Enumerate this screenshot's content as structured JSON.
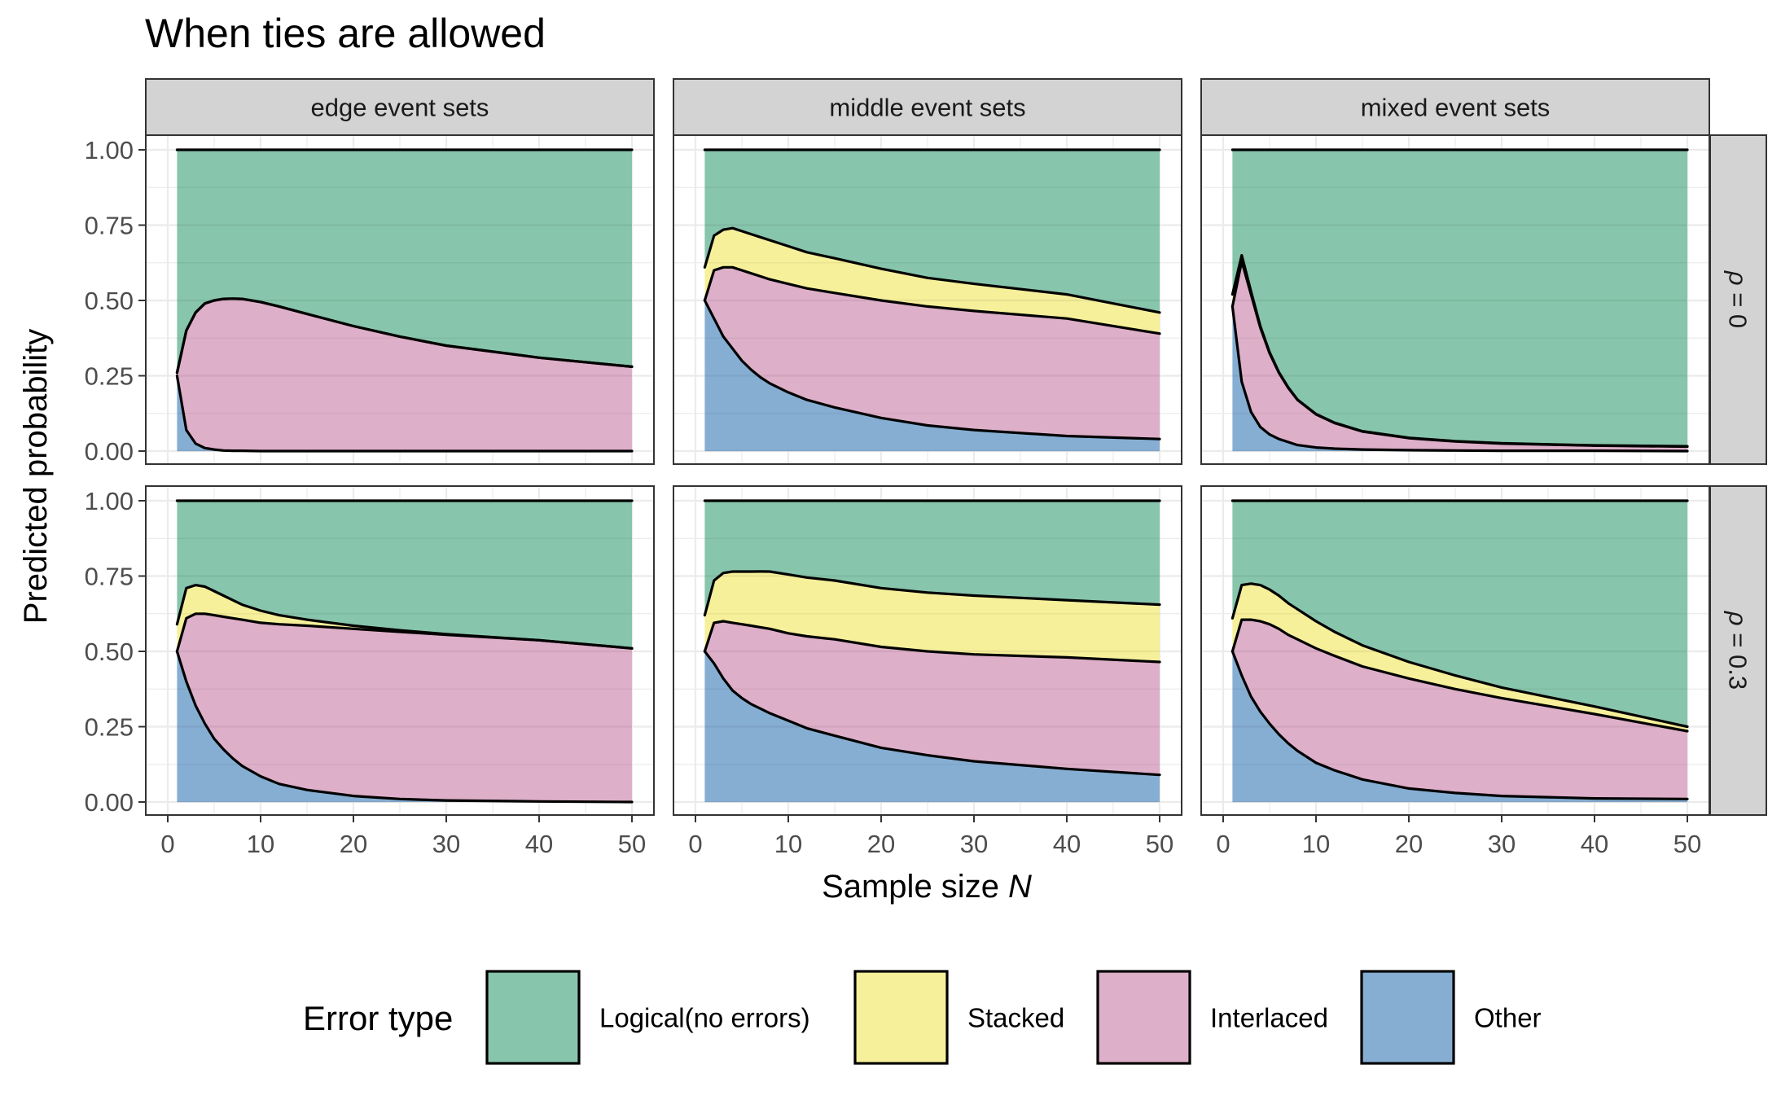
{
  "title": "When ties are allowed",
  "xlabel_prefix": "Sample size ",
  "xlabel_var": "N",
  "ylabel": "Predicted probability",
  "legend": {
    "title": "Error type",
    "items": [
      {
        "label": "Logical(no errors)",
        "color": "#87C5AC"
      },
      {
        "label": "Stacked",
        "color": "#F6F09A"
      },
      {
        "label": "Interlaced",
        "color": "#DEAFC9"
      },
      {
        "label": "Other",
        "color": "#86AED3"
      }
    ]
  },
  "colors": {
    "strip_bg": "#D3D3D3",
    "panel_border": "#333333",
    "gridline": "#EBEBEB",
    "Logical": "#87C5AC",
    "Stacked": "#F6F09A",
    "Interlaced": "#DEAFC9",
    "Other": "#86AED3"
  },
  "chart_data": {
    "type": "area",
    "stacked": true,
    "facet_cols": [
      "edge event sets",
      "middle event sets",
      "mixed event sets"
    ],
    "facet_rows": [
      {
        "var": "ρ",
        "value": " = 0"
      },
      {
        "var": "ρ",
        "value": " = 0.3"
      }
    ],
    "x": [
      1,
      2,
      3,
      4,
      5,
      6,
      7,
      8,
      10,
      12,
      15,
      20,
      25,
      30,
      40,
      50
    ],
    "xlim": [
      0,
      50
    ],
    "ylim": [
      0,
      1
    ],
    "x_ticks": [
      "0",
      "10",
      "20",
      "30",
      "40",
      "50"
    ],
    "y_ticks": [
      "0.00",
      "0.25",
      "0.50",
      "0.75",
      "1.00"
    ],
    "series_order": [
      "Other",
      "Interlaced",
      "Stacked",
      "Logical(no errors)"
    ],
    "panels": [
      {
        "row": 0,
        "col": 0,
        "other": [
          0.25,
          0.07,
          0.025,
          0.01,
          0.005,
          0.002,
          0.001,
          0.001,
          0,
          0,
          0,
          0,
          0,
          0,
          0,
          0
        ],
        "interlaced": [
          0.01,
          0.33,
          0.435,
          0.48,
          0.495,
          0.503,
          0.505,
          0.504,
          0.495,
          0.48,
          0.455,
          0.415,
          0.38,
          0.35,
          0.31,
          0.28
        ],
        "stacked": [
          0,
          0,
          0,
          0,
          0,
          0,
          0,
          0,
          0,
          0,
          0,
          0,
          0,
          0,
          0,
          0
        ],
        "logical": [
          0.74,
          0.6,
          0.54,
          0.51,
          0.5,
          0.495,
          0.494,
          0.495,
          0.505,
          0.52,
          0.545,
          0.585,
          0.62,
          0.65,
          0.69,
          0.72
        ]
      },
      {
        "row": 0,
        "col": 1,
        "other": [
          0.5,
          0.44,
          0.38,
          0.34,
          0.3,
          0.27,
          0.245,
          0.225,
          0.195,
          0.17,
          0.145,
          0.11,
          0.085,
          0.07,
          0.05,
          0.04
        ],
        "interlaced": [
          0,
          0.16,
          0.23,
          0.27,
          0.3,
          0.32,
          0.335,
          0.345,
          0.36,
          0.37,
          0.38,
          0.39,
          0.395,
          0.395,
          0.39,
          0.35
        ],
        "stacked": [
          0.11,
          0.115,
          0.125,
          0.13,
          0.13,
          0.13,
          0.13,
          0.13,
          0.125,
          0.12,
          0.115,
          0.105,
          0.095,
          0.09,
          0.08,
          0.07
        ],
        "logical": [
          0.39,
          0.285,
          0.265,
          0.26,
          0.27,
          0.28,
          0.29,
          0.3,
          0.32,
          0.34,
          0.36,
          0.395,
          0.425,
          0.445,
          0.48,
          0.54
        ]
      },
      {
        "row": 0,
        "col": 2,
        "other": [
          0.48,
          0.23,
          0.13,
          0.08,
          0.055,
          0.04,
          0.03,
          0.02,
          0.012,
          0.008,
          0.005,
          0.003,
          0.002,
          0.001,
          0.001,
          0
        ],
        "interlaced": [
          0,
          0.4,
          0.39,
          0.33,
          0.27,
          0.22,
          0.18,
          0.15,
          0.11,
          0.085,
          0.06,
          0.04,
          0.03,
          0.024,
          0.017,
          0.015
        ],
        "stacked": [
          0.04,
          0.02,
          0.01,
          0.005,
          0.003,
          0.002,
          0.002,
          0.001,
          0.001,
          0.001,
          0.001,
          0.001,
          0.001,
          0.001,
          0.001,
          0.001
        ],
        "logical": [
          0.48,
          0.35,
          0.47,
          0.585,
          0.672,
          0.738,
          0.788,
          0.829,
          0.877,
          0.906,
          0.934,
          0.956,
          0.967,
          0.974,
          0.981,
          0.984
        ]
      },
      {
        "row": 1,
        "col": 0,
        "other": [
          0.5,
          0.4,
          0.32,
          0.26,
          0.21,
          0.175,
          0.145,
          0.12,
          0.085,
          0.06,
          0.04,
          0.02,
          0.01,
          0.005,
          0.002,
          0
        ],
        "interlaced": [
          0,
          0.21,
          0.305,
          0.365,
          0.41,
          0.44,
          0.465,
          0.485,
          0.51,
          0.53,
          0.545,
          0.555,
          0.555,
          0.55,
          0.535,
          0.51
        ],
        "stacked": [
          0.09,
          0.1,
          0.095,
          0.09,
          0.08,
          0.07,
          0.06,
          0.05,
          0.04,
          0.03,
          0.02,
          0.01,
          0.005,
          0.002,
          0,
          0
        ],
        "logical": [
          0.41,
          0.29,
          0.28,
          0.285,
          0.3,
          0.315,
          0.33,
          0.345,
          0.365,
          0.38,
          0.395,
          0.415,
          0.43,
          0.443,
          0.463,
          0.49
        ]
      },
      {
        "row": 1,
        "col": 1,
        "other": [
          0.5,
          0.46,
          0.41,
          0.37,
          0.345,
          0.325,
          0.31,
          0.295,
          0.27,
          0.245,
          0.22,
          0.18,
          0.155,
          0.135,
          0.11,
          0.09
        ],
        "interlaced": [
          0,
          0.135,
          0.19,
          0.225,
          0.245,
          0.26,
          0.27,
          0.28,
          0.29,
          0.305,
          0.32,
          0.335,
          0.345,
          0.355,
          0.37,
          0.375
        ],
        "stacked": [
          0.12,
          0.14,
          0.16,
          0.17,
          0.175,
          0.18,
          0.185,
          0.19,
          0.195,
          0.195,
          0.195,
          0.195,
          0.195,
          0.195,
          0.19,
          0.19
        ],
        "logical": [
          0.38,
          0.265,
          0.24,
          0.235,
          0.235,
          0.235,
          0.235,
          0.235,
          0.245,
          0.255,
          0.265,
          0.29,
          0.305,
          0.315,
          0.33,
          0.345
        ]
      },
      {
        "row": 1,
        "col": 2,
        "other": [
          0.5,
          0.42,
          0.35,
          0.3,
          0.26,
          0.225,
          0.195,
          0.17,
          0.13,
          0.105,
          0.075,
          0.045,
          0.03,
          0.02,
          0.012,
          0.01
        ],
        "interlaced": [
          0,
          0.185,
          0.255,
          0.3,
          0.33,
          0.35,
          0.36,
          0.37,
          0.38,
          0.38,
          0.375,
          0.365,
          0.345,
          0.325,
          0.28,
          0.225
        ],
        "stacked": [
          0.11,
          0.115,
          0.12,
          0.12,
          0.115,
          0.11,
          0.105,
          0.1,
          0.09,
          0.08,
          0.07,
          0.055,
          0.045,
          0.035,
          0.025,
          0.015
        ],
        "logical": [
          0.39,
          0.28,
          0.275,
          0.28,
          0.295,
          0.315,
          0.34,
          0.36,
          0.4,
          0.435,
          0.48,
          0.535,
          0.58,
          0.62,
          0.683,
          0.75
        ]
      }
    ]
  }
}
